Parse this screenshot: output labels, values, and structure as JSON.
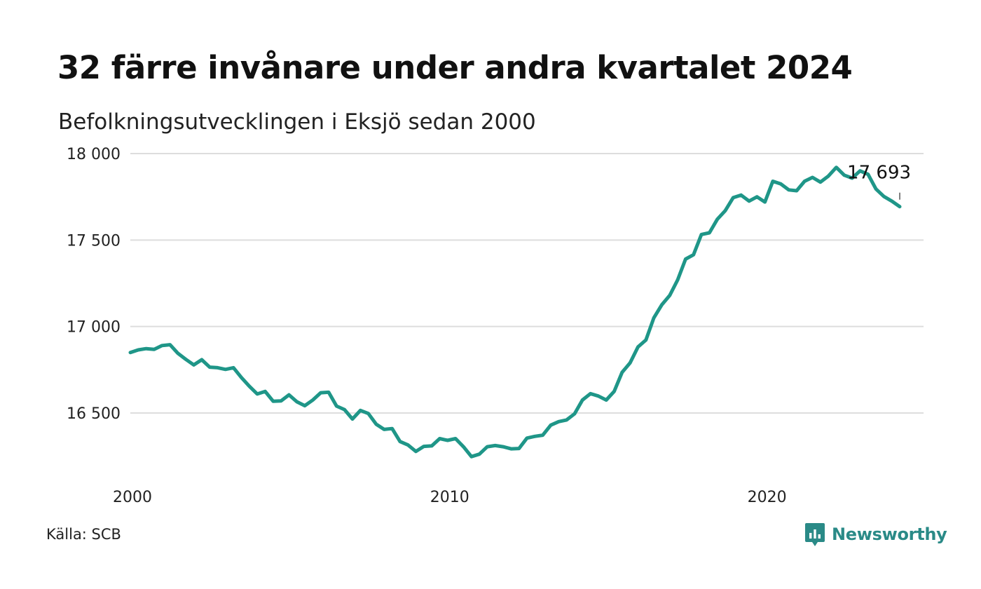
{
  "title": "32 färre invånare under andra kvartalet 2024",
  "subtitle": "Befolkningsutvecklingen i Eksjö sedan 2000",
  "source": "Källa: SCB",
  "brand": {
    "name": "Newsworthy",
    "icon": "newsworthy-logo-icon",
    "color": "#2a8a87"
  },
  "chart_data": {
    "type": "line",
    "title": "32 färre invånare under andra kvartalet 2024",
    "subtitle": "Befolkningsutvecklingen i Eksjö sedan 2000",
    "xlabel": "",
    "ylabel": "",
    "xlim": [
      2000,
      2025
    ],
    "ylim": [
      16200,
      18000
    ],
    "x_ticks": [
      2000,
      2010,
      2020
    ],
    "x_tick_labels": [
      "2000",
      "2010",
      "2020"
    ],
    "y_ticks": [
      16500,
      17000,
      17500,
      18000
    ],
    "y_tick_labels": [
      "16 500",
      "17 000",
      "17 500",
      "18 000"
    ],
    "grid": true,
    "legend": "none",
    "line_color": "#1f9688",
    "annotation": {
      "label": "17 693",
      "x": 2024.25,
      "y": 17693
    },
    "series": [
      {
        "values": [
          [
            2000.0,
            16850
          ],
          [
            2000.25,
            16865
          ],
          [
            2000.5,
            16872
          ],
          [
            2000.75,
            16868
          ],
          [
            2001.0,
            16890
          ],
          [
            2001.25,
            16895
          ],
          [
            2001.5,
            16845
          ],
          [
            2001.75,
            16810
          ],
          [
            2002.0,
            16778
          ],
          [
            2002.25,
            16808
          ],
          [
            2002.5,
            16765
          ],
          [
            2002.75,
            16762
          ],
          [
            2003.0,
            16752
          ],
          [
            2003.25,
            16762
          ],
          [
            2003.5,
            16705
          ],
          [
            2003.75,
            16655
          ],
          [
            2004.0,
            16610
          ],
          [
            2004.25,
            16625
          ],
          [
            2004.5,
            16568
          ],
          [
            2004.75,
            16570
          ],
          [
            2005.0,
            16605
          ],
          [
            2005.25,
            16565
          ],
          [
            2005.5,
            16542
          ],
          [
            2005.75,
            16575
          ],
          [
            2006.0,
            16617
          ],
          [
            2006.25,
            16620
          ],
          [
            2006.5,
            16540
          ],
          [
            2006.75,
            16520
          ],
          [
            2007.0,
            16465
          ],
          [
            2007.25,
            16515
          ],
          [
            2007.5,
            16497
          ],
          [
            2007.75,
            16435
          ],
          [
            2008.0,
            16405
          ],
          [
            2008.25,
            16410
          ],
          [
            2008.5,
            16335
          ],
          [
            2008.75,
            16315
          ],
          [
            2009.0,
            16278
          ],
          [
            2009.25,
            16307
          ],
          [
            2009.5,
            16310
          ],
          [
            2009.75,
            16352
          ],
          [
            2010.0,
            16342
          ],
          [
            2010.25,
            16352
          ],
          [
            2010.5,
            16305
          ],
          [
            2010.75,
            16248
          ],
          [
            2011.0,
            16262
          ],
          [
            2011.25,
            16305
          ],
          [
            2011.5,
            16312
          ],
          [
            2011.75,
            16305
          ],
          [
            2012.0,
            16293
          ],
          [
            2012.25,
            16295
          ],
          [
            2012.5,
            16355
          ],
          [
            2012.75,
            16365
          ],
          [
            2013.0,
            16372
          ],
          [
            2013.25,
            16430
          ],
          [
            2013.5,
            16450
          ],
          [
            2013.75,
            16460
          ],
          [
            2014.0,
            16495
          ],
          [
            2014.25,
            16575
          ],
          [
            2014.5,
            16612
          ],
          [
            2014.75,
            16598
          ],
          [
            2015.0,
            16575
          ],
          [
            2015.25,
            16625
          ],
          [
            2015.5,
            16735
          ],
          [
            2015.75,
            16790
          ],
          [
            2016.0,
            16882
          ],
          [
            2016.25,
            16922
          ],
          [
            2016.5,
            17050
          ],
          [
            2016.75,
            17125
          ],
          [
            2017.0,
            17180
          ],
          [
            2017.25,
            17270
          ],
          [
            2017.5,
            17390
          ],
          [
            2017.75,
            17415
          ],
          [
            2018.0,
            17532
          ],
          [
            2018.25,
            17542
          ],
          [
            2018.5,
            17620
          ],
          [
            2018.75,
            17670
          ],
          [
            2019.0,
            17745
          ],
          [
            2019.25,
            17760
          ],
          [
            2019.5,
            17725
          ],
          [
            2019.75,
            17750
          ],
          [
            2020.0,
            17720
          ],
          [
            2020.25,
            17840
          ],
          [
            2020.5,
            17825
          ],
          [
            2020.75,
            17790
          ],
          [
            2021.0,
            17785
          ],
          [
            2021.25,
            17840
          ],
          [
            2021.5,
            17862
          ],
          [
            2021.75,
            17835
          ],
          [
            2022.0,
            17870
          ],
          [
            2022.25,
            17920
          ],
          [
            2022.5,
            17875
          ],
          [
            2022.75,
            17858
          ],
          [
            2023.0,
            17900
          ],
          [
            2023.25,
            17880
          ],
          [
            2023.5,
            17795
          ],
          [
            2023.75,
            17752
          ],
          [
            2024.0,
            17725
          ],
          [
            2024.25,
            17693
          ]
        ]
      }
    ]
  }
}
